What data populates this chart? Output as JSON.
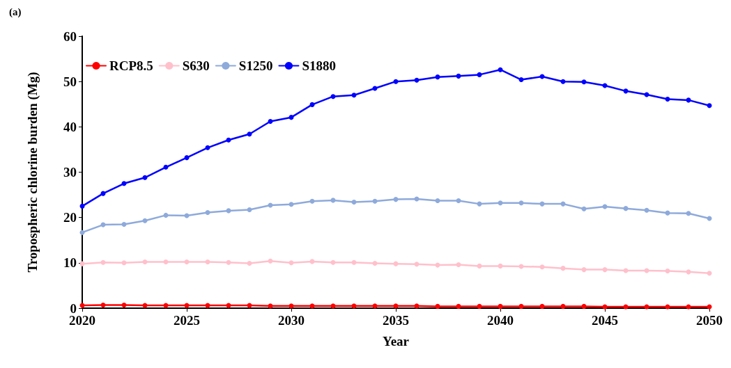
{
  "chart_data": {
    "type": "line",
    "title": "(a)",
    "xlabel": "Year",
    "ylabel": "Tropospheric chlorine burden (Mg)",
    "x": [
      2020,
      2021,
      2022,
      2023,
      2024,
      2025,
      2026,
      2027,
      2028,
      2029,
      2030,
      2031,
      2032,
      2033,
      2034,
      2035,
      2036,
      2037,
      2038,
      2039,
      2040,
      2041,
      2042,
      2043,
      2044,
      2045,
      2046,
      2047,
      2048,
      2049,
      2050
    ],
    "series": [
      {
        "name": "RCP8.5",
        "color": "#ff0000",
        "values": [
          0.6,
          0.7,
          0.7,
          0.6,
          0.6,
          0.6,
          0.6,
          0.6,
          0.6,
          0.5,
          0.5,
          0.5,
          0.5,
          0.5,
          0.5,
          0.5,
          0.5,
          0.4,
          0.4,
          0.4,
          0.4,
          0.4,
          0.4,
          0.4,
          0.4,
          0.3,
          0.3,
          0.3,
          0.3,
          0.3,
          0.3
        ]
      },
      {
        "name": "S630",
        "color": "#ffc0cb",
        "values": [
          9.8,
          10.1,
          10.0,
          10.2,
          10.2,
          10.2,
          10.2,
          10.1,
          9.9,
          10.4,
          10.0,
          10.3,
          10.1,
          10.1,
          9.9,
          9.8,
          9.7,
          9.5,
          9.6,
          9.3,
          9.3,
          9.2,
          9.1,
          8.8,
          8.5,
          8.5,
          8.3,
          8.3,
          8.2,
          8.0,
          7.7
        ]
      },
      {
        "name": "S1250",
        "color": "#8eaadb",
        "values": [
          16.7,
          18.4,
          18.5,
          19.3,
          20.5,
          20.4,
          21.1,
          21.5,
          21.7,
          22.7,
          22.9,
          23.6,
          23.8,
          23.4,
          23.6,
          24.0,
          24.1,
          23.7,
          23.7,
          23.0,
          23.2,
          23.2,
          23.0,
          23.0,
          21.9,
          22.4,
          22.0,
          21.6,
          21.0,
          20.9,
          19.8
        ]
      },
      {
        "name": "S1880",
        "color": "#0000ff",
        "values": [
          22.5,
          25.3,
          27.5,
          28.8,
          31.1,
          33.2,
          35.4,
          37.1,
          38.4,
          41.2,
          42.1,
          44.9,
          46.7,
          47.0,
          48.5,
          50.0,
          50.3,
          51.0,
          51.2,
          51.5,
          52.6,
          50.4,
          51.1,
          50.0,
          49.9,
          49.1,
          47.9,
          47.1,
          46.1,
          45.9,
          44.7
        ]
      }
    ],
    "xlim": [
      2020,
      2050
    ],
    "xticks": [
      2020,
      2025,
      2030,
      2035,
      2040,
      2045,
      2050
    ],
    "ylim": [
      0,
      60
    ],
    "yticks": [
      0,
      10,
      20,
      30,
      40,
      50,
      60
    ],
    "grid": false,
    "legend": "top left",
    "marker": "circle",
    "line_style": "solid"
  }
}
